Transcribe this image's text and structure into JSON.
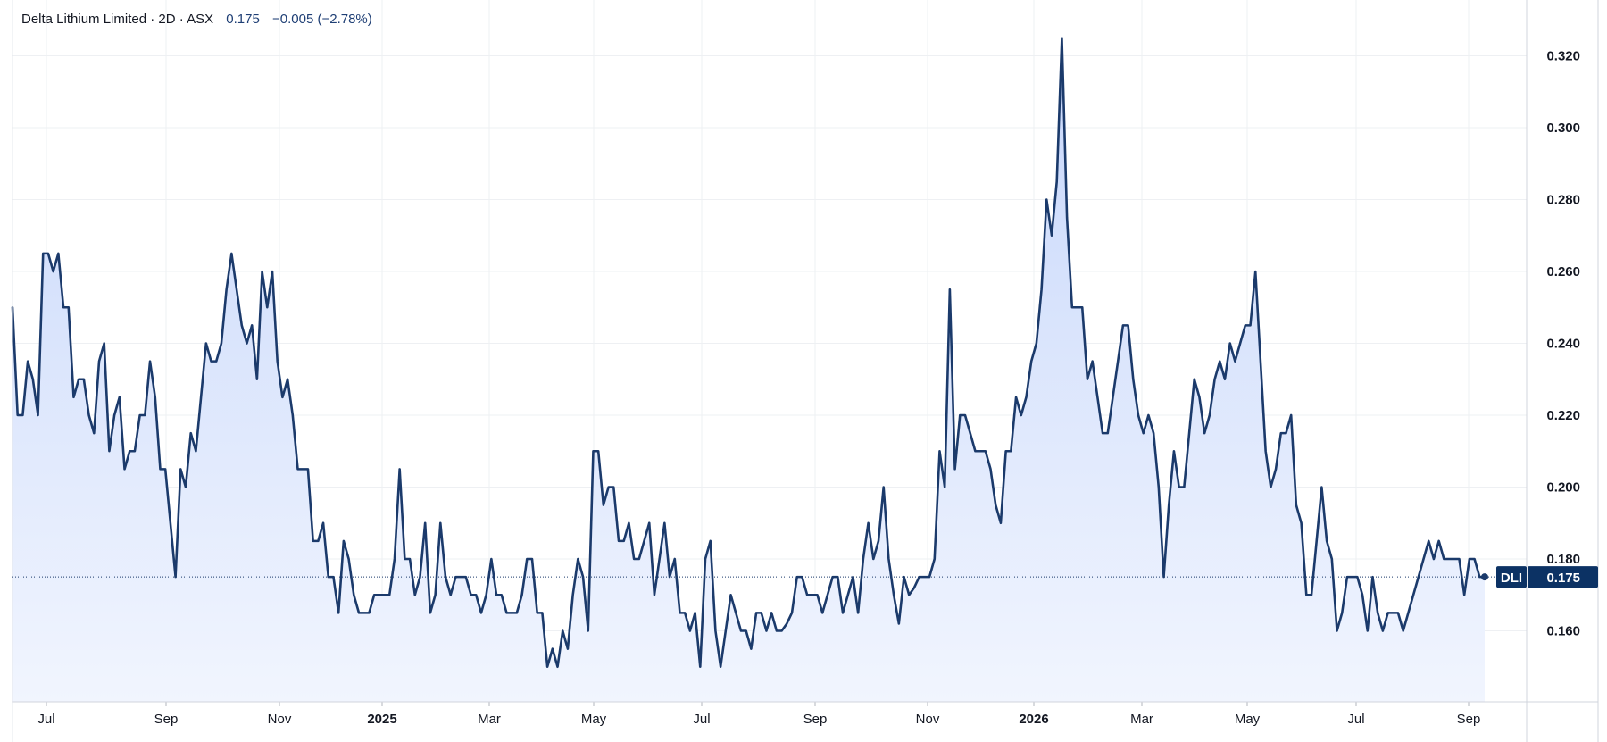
{
  "header": {
    "name": "Delta Lithium Limited",
    "interval": "2D",
    "exchange": "ASX",
    "price": "0.175",
    "change": "−0.005 (−2.78%)"
  },
  "chart_data": {
    "type": "area",
    "ticker": "DLI",
    "last_value": 0.175,
    "last_label": "0.175",
    "ylim": [
      0.14,
      0.328
    ],
    "y_ticks": [
      {
        "value": 0.16,
        "label": "0.160"
      },
      {
        "value": 0.18,
        "label": "0.180"
      },
      {
        "value": 0.2,
        "label": "0.200"
      },
      {
        "value": 0.22,
        "label": "0.220"
      },
      {
        "value": 0.24,
        "label": "0.240"
      },
      {
        "value": 0.26,
        "label": "0.260"
      },
      {
        "value": 0.28,
        "label": "0.280"
      },
      {
        "value": 0.3,
        "label": "0.300"
      },
      {
        "value": 0.32,
        "label": "0.320"
      }
    ],
    "x_ticks": [
      {
        "label": "Jul",
        "bold": false
      },
      {
        "label": "Sep",
        "bold": false
      },
      {
        "label": "Nov",
        "bold": false
      },
      {
        "label": "2025",
        "bold": true
      },
      {
        "label": "Mar",
        "bold": false
      },
      {
        "label": "May",
        "bold": false
      },
      {
        "label": "Jul",
        "bold": false
      },
      {
        "label": "Sep",
        "bold": false
      },
      {
        "label": "Nov",
        "bold": false
      },
      {
        "label": "2026",
        "bold": true
      },
      {
        "label": "Mar",
        "bold": false
      },
      {
        "label": "May",
        "bold": false
      },
      {
        "label": "Jul",
        "bold": false
      },
      {
        "label": "Sep",
        "bold": false
      }
    ],
    "colors": {
      "line": "#1b3a6b",
      "fill_top": "#c7d7fb",
      "fill_bottom": "#f1f5fe",
      "label_bg": "#0c3264"
    },
    "values": [
      0.25,
      0.22,
      0.22,
      0.235,
      0.23,
      0.22,
      0.265,
      0.265,
      0.26,
      0.265,
      0.25,
      0.25,
      0.225,
      0.23,
      0.23,
      0.22,
      0.215,
      0.235,
      0.24,
      0.21,
      0.22,
      0.225,
      0.205,
      0.21,
      0.21,
      0.22,
      0.22,
      0.235,
      0.225,
      0.205,
      0.205,
      0.19,
      0.175,
      0.205,
      0.2,
      0.215,
      0.21,
      0.225,
      0.24,
      0.235,
      0.235,
      0.24,
      0.255,
      0.265,
      0.255,
      0.245,
      0.24,
      0.245,
      0.23,
      0.26,
      0.25,
      0.26,
      0.235,
      0.225,
      0.23,
      0.22,
      0.205,
      0.205,
      0.205,
      0.185,
      0.185,
      0.19,
      0.175,
      0.175,
      0.165,
      0.185,
      0.18,
      0.17,
      0.165,
      0.165,
      0.165,
      0.17,
      0.17,
      0.17,
      0.17,
      0.18,
      0.205,
      0.18,
      0.18,
      0.17,
      0.175,
      0.19,
      0.165,
      0.17,
      0.19,
      0.175,
      0.17,
      0.175,
      0.175,
      0.175,
      0.17,
      0.17,
      0.165,
      0.17,
      0.18,
      0.17,
      0.17,
      0.165,
      0.165,
      0.165,
      0.17,
      0.18,
      0.18,
      0.165,
      0.165,
      0.15,
      0.155,
      0.15,
      0.16,
      0.155,
      0.17,
      0.18,
      0.175,
      0.16,
      0.21,
      0.21,
      0.195,
      0.2,
      0.2,
      0.185,
      0.185,
      0.19,
      0.18,
      0.18,
      0.185,
      0.19,
      0.17,
      0.18,
      0.19,
      0.175,
      0.18,
      0.165,
      0.165,
      0.16,
      0.165,
      0.15,
      0.18,
      0.185,
      0.16,
      0.15,
      0.16,
      0.17,
      0.165,
      0.16,
      0.16,
      0.155,
      0.165,
      0.165,
      0.16,
      0.165,
      0.16,
      0.16,
      0.162,
      0.165,
      0.175,
      0.175,
      0.17,
      0.17,
      0.17,
      0.165,
      0.17,
      0.175,
      0.175,
      0.165,
      0.17,
      0.175,
      0.165,
      0.18,
      0.19,
      0.18,
      0.185,
      0.2,
      0.18,
      0.17,
      0.162,
      0.175,
      0.17,
      0.172,
      0.175,
      0.175,
      0.175,
      0.18,
      0.21,
      0.2,
      0.255,
      0.205,
      0.22,
      0.22,
      0.215,
      0.21,
      0.21,
      0.21,
      0.205,
      0.195,
      0.19,
      0.21,
      0.21,
      0.225,
      0.22,
      0.225,
      0.235,
      0.24,
      0.255,
      0.28,
      0.27,
      0.285,
      0.325,
      0.275,
      0.25,
      0.25,
      0.25,
      0.23,
      0.235,
      0.225,
      0.215,
      0.215,
      0.225,
      0.235,
      0.245,
      0.245,
      0.23,
      0.22,
      0.215,
      0.22,
      0.215,
      0.2,
      0.175,
      0.195,
      0.21,
      0.2,
      0.2,
      0.215,
      0.23,
      0.225,
      0.215,
      0.22,
      0.23,
      0.235,
      0.23,
      0.24,
      0.235,
      0.24,
      0.245,
      0.245,
      0.26,
      0.235,
      0.21,
      0.2,
      0.205,
      0.215,
      0.215,
      0.22,
      0.195,
      0.19,
      0.17,
      0.17,
      0.185,
      0.2,
      0.185,
      0.18,
      0.16,
      0.165,
      0.175,
      0.175,
      0.175,
      0.17,
      0.16,
      0.175,
      0.165,
      0.16,
      0.165,
      0.165,
      0.165,
      0.16,
      0.165,
      0.17,
      0.175,
      0.18,
      0.185,
      0.18,
      0.185,
      0.18,
      0.18,
      0.18,
      0.18,
      0.17,
      0.18,
      0.18,
      0.175,
      0.175
    ]
  }
}
